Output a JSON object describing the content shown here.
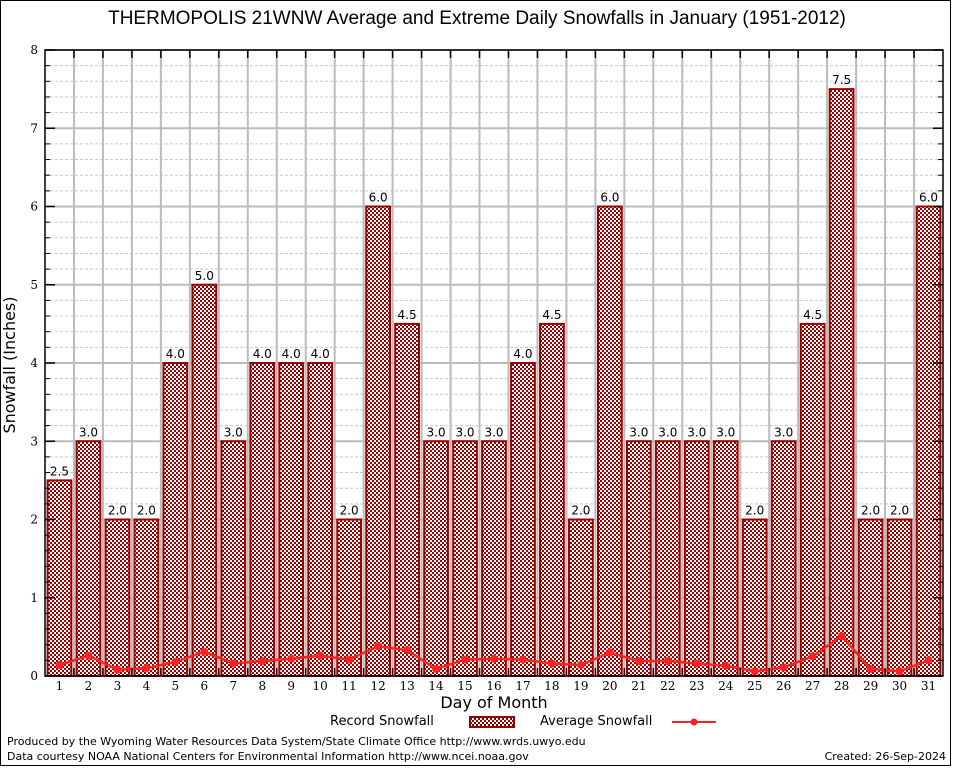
{
  "chart_data": {
    "type": "bar",
    "title": "THERMOPOLIS 21WNW Average and Extreme Daily Snowfalls in January (1951-2012)",
    "xlabel": "Day of Month",
    "ylabel": "Snowfall (Inches)",
    "ylim": [
      0,
      8
    ],
    "yticks": [
      "0",
      "1",
      "2",
      "3",
      "4",
      "5",
      "6",
      "7",
      "8"
    ],
    "grid": true,
    "legend_position": "bottom",
    "categories": [
      "1",
      "2",
      "3",
      "4",
      "5",
      "6",
      "7",
      "8",
      "9",
      "10",
      "11",
      "12",
      "13",
      "14",
      "15",
      "16",
      "17",
      "18",
      "19",
      "20",
      "21",
      "22",
      "23",
      "24",
      "25",
      "26",
      "27",
      "28",
      "29",
      "30",
      "31"
    ],
    "series": [
      {
        "name": "Record Snowfall",
        "type": "bar",
        "color": "#990000",
        "values": [
          2.5,
          3.0,
          2.0,
          2.0,
          4.0,
          5.0,
          3.0,
          4.0,
          4.0,
          4.0,
          2.0,
          6.0,
          4.5,
          3.0,
          3.0,
          3.0,
          4.0,
          4.5,
          2.0,
          6.0,
          3.0,
          3.0,
          3.0,
          3.0,
          2.0,
          3.0,
          4.5,
          7.5,
          2.0,
          2.0,
          6.0
        ],
        "labels": [
          "2.5",
          "3.0",
          "2.0",
          "2.0",
          "4.0",
          "5.0",
          "3.0",
          "4.0",
          "4.0",
          "4.0",
          "2.0",
          "6.0",
          "4.5",
          "3.0",
          "3.0",
          "3.0",
          "4.0",
          "4.5",
          "2.0",
          "6.0",
          "3.0",
          "3.0",
          "3.0",
          "3.0",
          "2.0",
          "3.0",
          "4.5",
          "7.5",
          "2.0",
          "2.0",
          "6.0"
        ]
      },
      {
        "name": "Average Snowfall",
        "type": "line",
        "color": "#ff2020",
        "values": [
          0.14,
          0.26,
          0.08,
          0.1,
          0.18,
          0.31,
          0.16,
          0.19,
          0.22,
          0.26,
          0.21,
          0.38,
          0.33,
          0.09,
          0.21,
          0.22,
          0.21,
          0.16,
          0.14,
          0.3,
          0.19,
          0.19,
          0.16,
          0.13,
          0.06,
          0.11,
          0.25,
          0.51,
          0.09,
          0.06,
          0.2
        ]
      }
    ]
  },
  "footer": {
    "produced_by": "Produced by the Wyoming Water Resources Data System/State Climate Office http://www.wrds.uwyo.edu",
    "data_courtesy": "Data courtesy NOAA National Centers for Environmental Information http://www.ncei.noaa.gov",
    "created": "Created:  26-Sep-2024"
  }
}
